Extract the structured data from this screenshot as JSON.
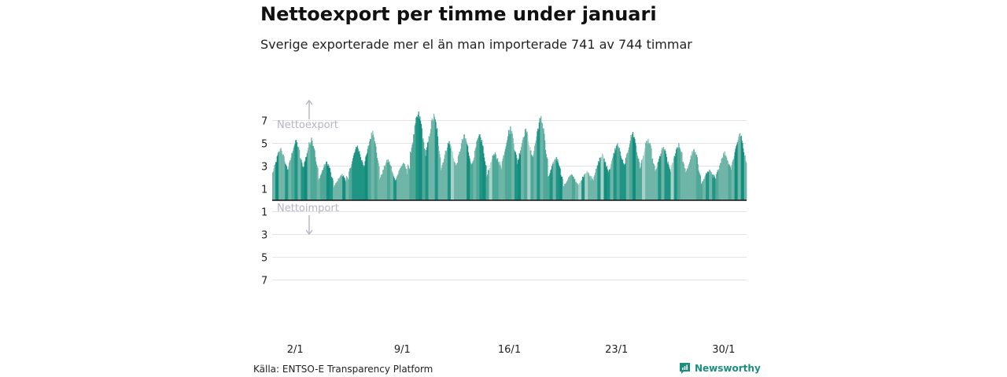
{
  "chart_data": {
    "type": "bar",
    "title": "Nettoexport per timme under januari",
    "subtitle": "Sverige exporterade mer el än man importerade 741 av 744 timmar",
    "y_tick_labels": [
      "7",
      "5",
      "3",
      "1",
      "1",
      "3",
      "5",
      "7"
    ],
    "ylim": [
      -8,
      8
    ],
    "grid": true,
    "annotations": {
      "export": "Nettoexport",
      "import": "Nettoimport"
    },
    "x_tick_labels": [
      "2/1",
      "9/1",
      "16/1",
      "23/1",
      "30/1"
    ],
    "x_tick_days": [
      2,
      9,
      16,
      23,
      30
    ],
    "days": 31,
    "hours_per_day": 24,
    "colors": [
      "#6fb5a8",
      "#4fa898",
      "#1f9484",
      "#128d7d",
      "#a7d0c8"
    ],
    "daily_max": [
      4.6,
      5.3,
      5.5,
      3.4,
      2.3,
      4.8,
      6.1,
      3.6,
      3.3,
      7.8,
      7.6,
      5.2,
      5.8,
      5.8,
      4.2,
      6.5,
      6.3,
      7.4,
      3.8,
      2.3,
      2.6,
      4.1,
      5.0,
      6.0,
      5.4,
      4.7,
      5.0,
      4.5,
      2.7,
      4.3,
      5.9
    ]
  },
  "source": "Källa: ENTSO-E Transparency Platform",
  "brand": {
    "name": "Newsworthy"
  }
}
